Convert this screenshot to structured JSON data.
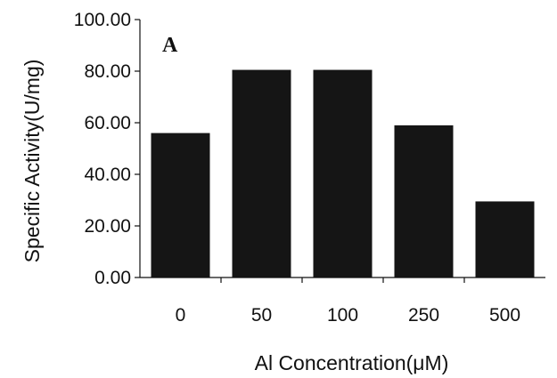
{
  "chart_data": {
    "type": "bar",
    "panel_label": "A",
    "categories": [
      "0",
      "50",
      "100",
      "250",
      "500"
    ],
    "values": [
      56,
      80.5,
      80.5,
      59,
      29.5
    ],
    "xlabel": "Al Concentration(μM)",
    "ylabel": "Specific Activity(U/mg)",
    "ylim": [
      0,
      100
    ],
    "yticks": [
      "0.00",
      "20.00",
      "40.00",
      "60.00",
      "80.00",
      "100.00"
    ],
    "grid": false,
    "bar_color": "#151515"
  }
}
